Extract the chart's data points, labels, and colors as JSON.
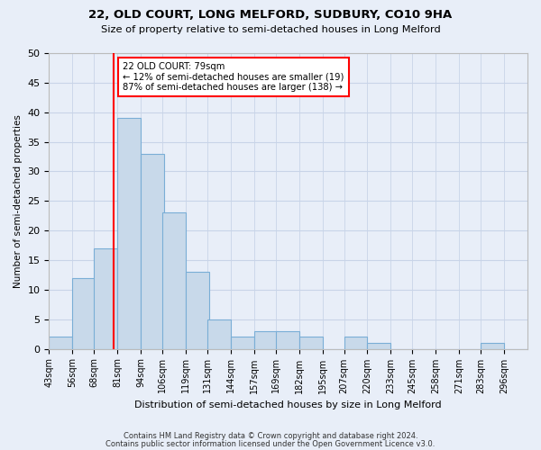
{
  "title1": "22, OLD COURT, LONG MELFORD, SUDBURY, CO10 9HA",
  "title2": "Size of property relative to semi-detached houses in Long Melford",
  "xlabel": "Distribution of semi-detached houses by size in Long Melford",
  "ylabel": "Number of semi-detached properties",
  "bin_labels": [
    "43sqm",
    "56sqm",
    "68sqm",
    "81sqm",
    "94sqm",
    "106sqm",
    "119sqm",
    "131sqm",
    "144sqm",
    "157sqm",
    "169sqm",
    "182sqm",
    "195sqm",
    "207sqm",
    "220sqm",
    "233sqm",
    "245sqm",
    "258sqm",
    "271sqm",
    "283sqm",
    "296sqm"
  ],
  "bin_edges": [
    43,
    56,
    68,
    81,
    94,
    106,
    119,
    131,
    144,
    157,
    169,
    182,
    195,
    207,
    220,
    233,
    245,
    258,
    271,
    283,
    296
  ],
  "bar_heights": [
    2,
    12,
    17,
    39,
    33,
    23,
    13,
    5,
    2,
    3,
    3,
    2,
    0,
    2,
    1,
    0,
    0,
    0,
    0,
    1,
    0
  ],
  "bar_color": "#c8d9ea",
  "bar_edge_color": "#7aaed6",
  "property_size": 79,
  "annotation_line1": "22 OLD COURT: 79sqm",
  "annotation_line2": "← 12% of semi-detached houses are smaller (19)",
  "annotation_line3": "87% of semi-detached houses are larger (138) →",
  "annotation_box_color": "white",
  "annotation_box_edge": "red",
  "vline_color": "red",
  "ylim": [
    0,
    50
  ],
  "yticks": [
    0,
    5,
    10,
    15,
    20,
    25,
    30,
    35,
    40,
    45,
    50
  ],
  "grid_color": "#c8d4e8",
  "bg_color": "#e8eef8",
  "plot_bg_color": "#e8eef8",
  "footer1": "Contains HM Land Registry data © Crown copyright and database right 2024.",
  "footer2": "Contains public sector information licensed under the Open Government Licence v3.0."
}
